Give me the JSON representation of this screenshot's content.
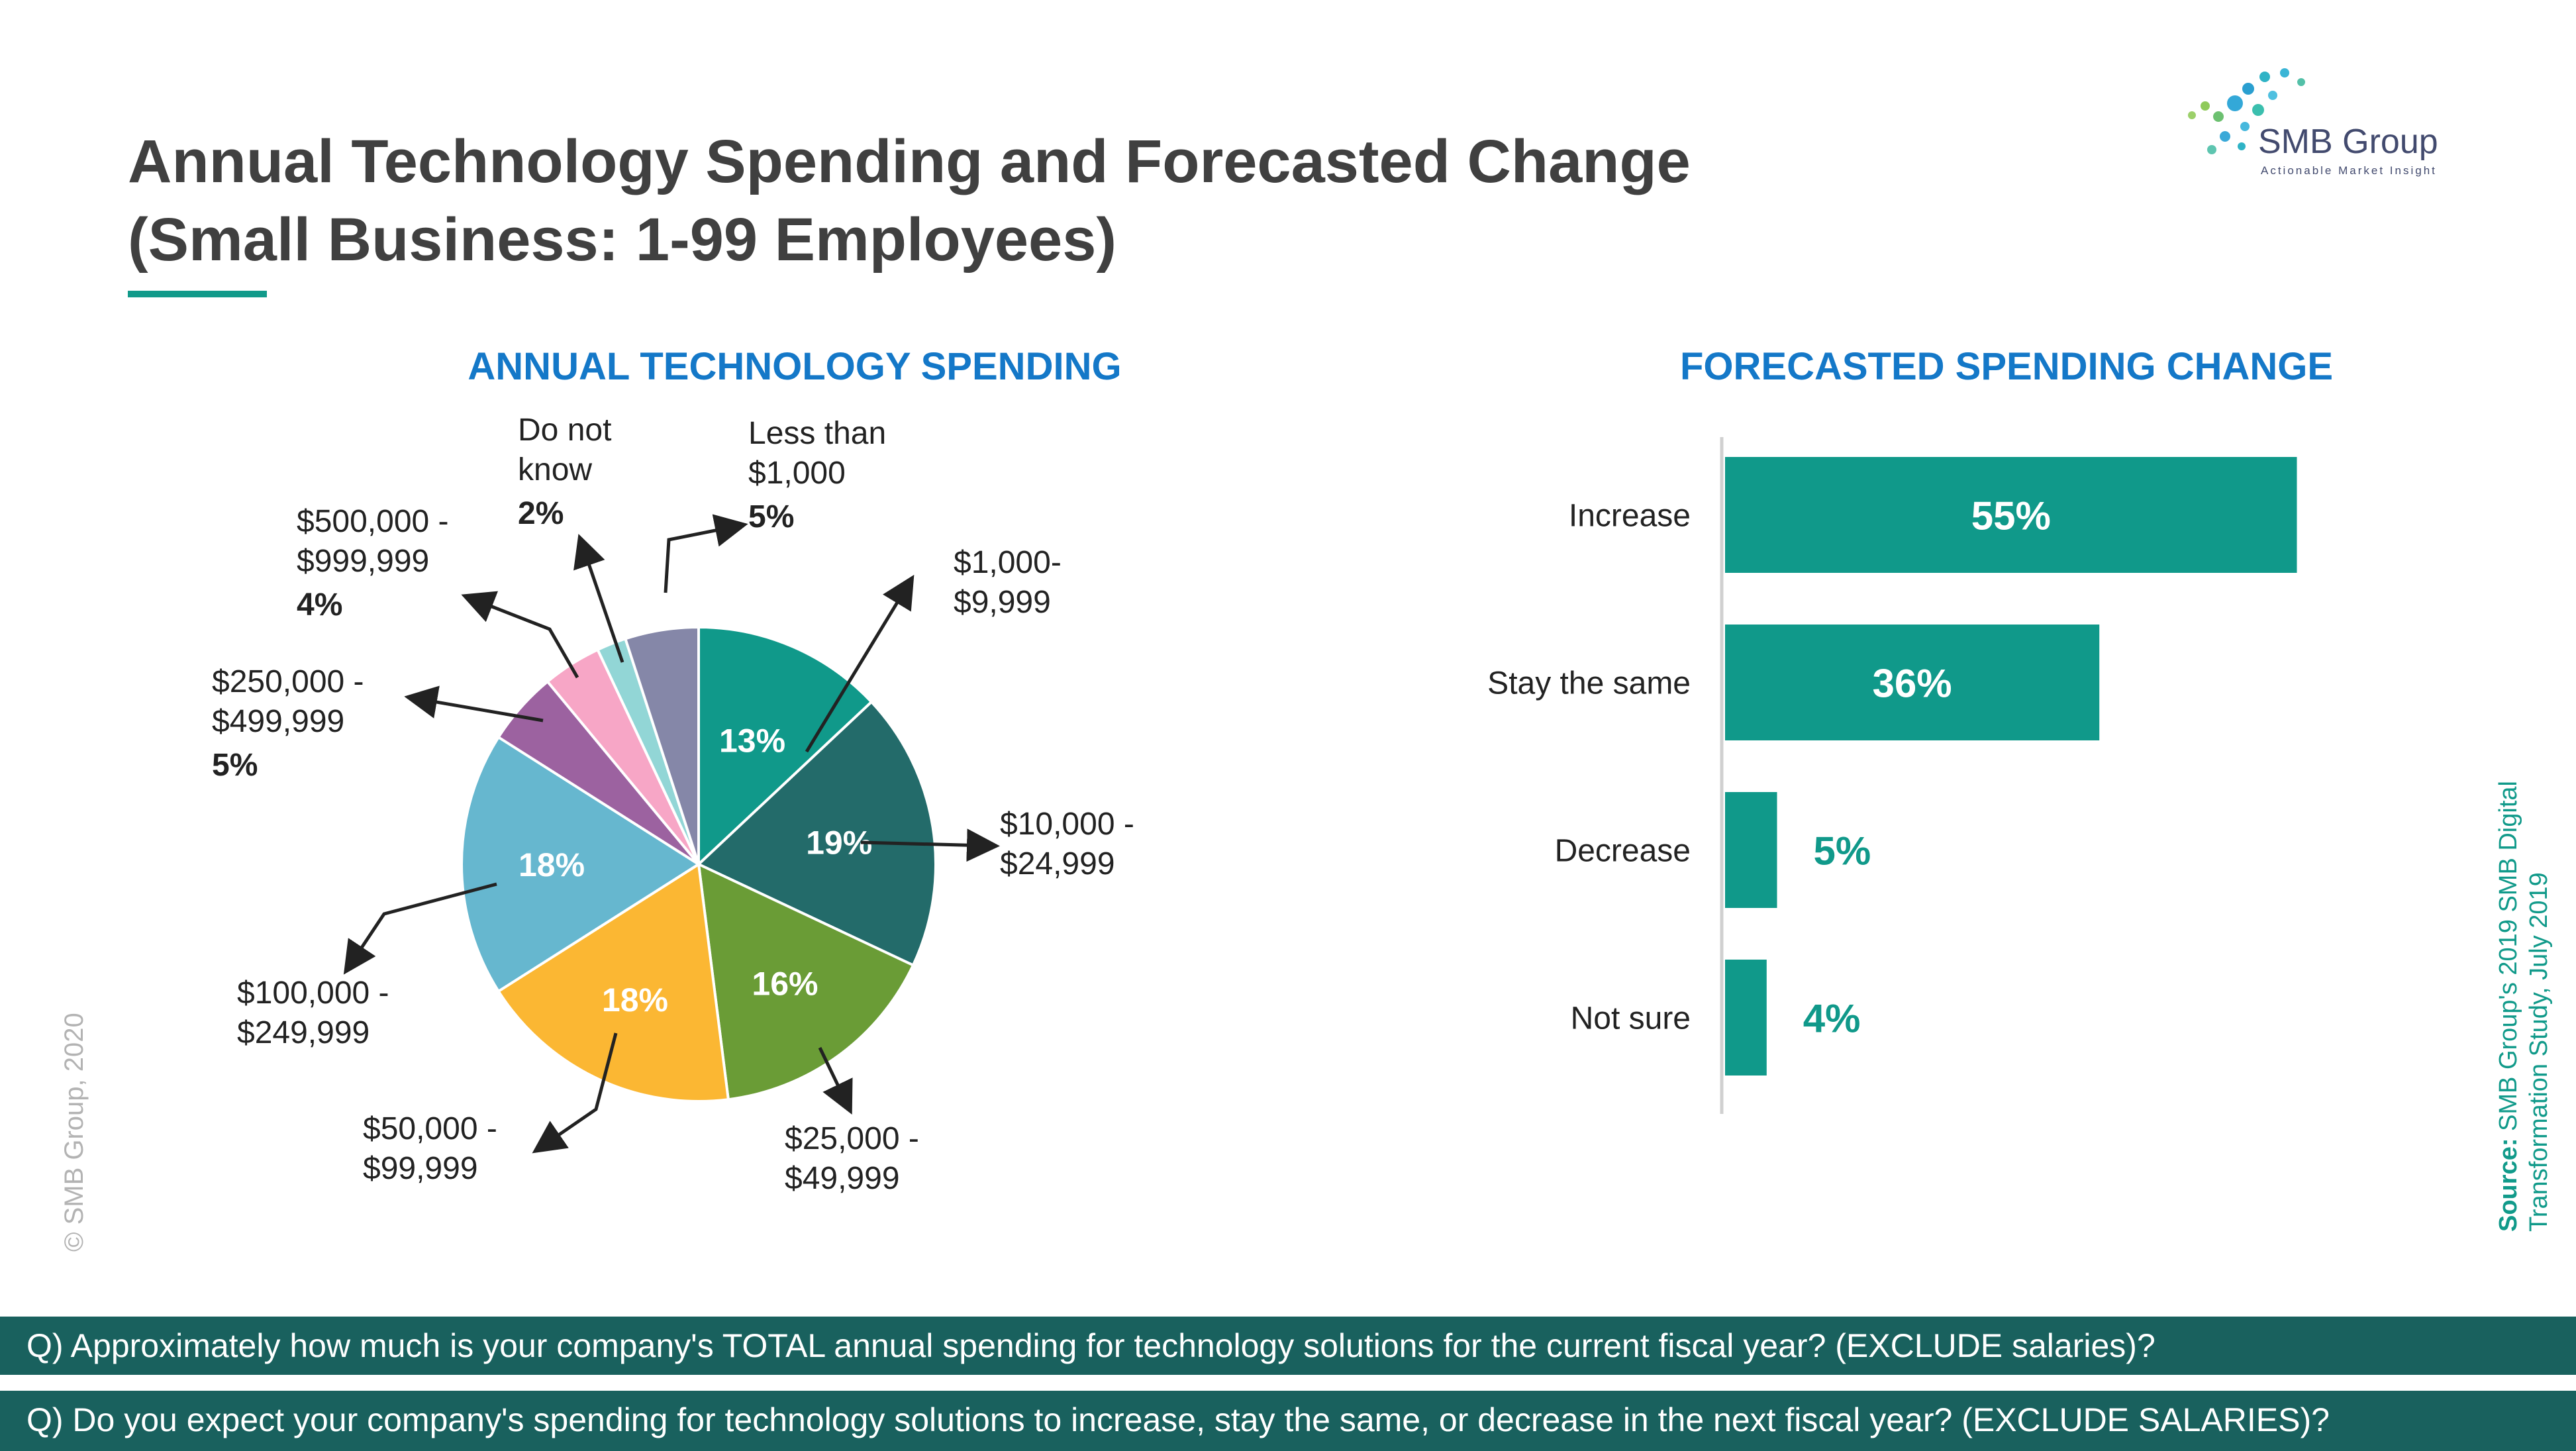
{
  "title": {
    "line1": "Annual Technology Spending and Forecasted Change",
    "line2": "(Small Business: 1-99 Employees)"
  },
  "logo": {
    "name": "SMB Group",
    "tagline": "Actionable Market Insight"
  },
  "copyright": "© SMB Group, 2020",
  "source": {
    "label": "Source:",
    "text": " SMB Group's 2019 SMB Digital Transformation Study, July 2019"
  },
  "questions": [
    "Q) Approximately how much is your company's TOTAL annual spending for technology solutions for the current fiscal year? (EXCLUDE salaries)?",
    "Q) Do you expect your company's spending for technology solutions to increase, stay the same, or decrease in the next fiscal year? (EXCLUDE SALARIES)?"
  ],
  "chart_data": [
    {
      "type": "pie",
      "title": "ANNUAL TECHNOLOGY SPENDING",
      "slices": [
        {
          "label": "$1,000-\n$9,999",
          "value": 13,
          "color": "#10998a"
        },
        {
          "label": "$10,000 -\n$24,999",
          "value": 19,
          "color": "#236b6a"
        },
        {
          "label": "$25,000 -\n$49,999",
          "value": 16,
          "color": "#6a9c36"
        },
        {
          "label": "$50,000 -\n$99,999",
          "value": 18,
          "color": "#fbb733"
        },
        {
          "label": "$100,000 -\n$249,999",
          "value": 18,
          "color": "#66b7cf"
        },
        {
          "label": "$250,000 -\n$499,999",
          "value": 5,
          "color": "#9c62a0"
        },
        {
          "label": "$500,000 -\n$999,999",
          "value": 4,
          "color": "#f7a6c6"
        },
        {
          "label": "Do not\nknow",
          "value": 2,
          "color": "#92d6d6"
        },
        {
          "label": "Less than\n$1,000",
          "value": 5,
          "color": "#8587a8"
        }
      ],
      "value_suffix": "%"
    },
    {
      "type": "bar",
      "orientation": "horizontal",
      "title": "FORECASTED SPENDING CHANGE",
      "categories": [
        "Increase",
        "Stay the same",
        "Decrease",
        "Not sure"
      ],
      "values": [
        55,
        36,
        5,
        4
      ],
      "value_suffix": "%",
      "color": "#10998a"
    }
  ]
}
